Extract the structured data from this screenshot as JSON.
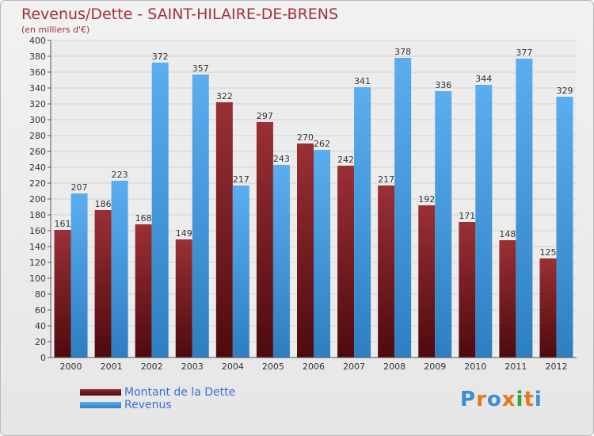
{
  "title": "Revenus/Dette - SAINT-HILAIRE-DE-BRENS",
  "subtitle": "(en milliers d'€)",
  "logo": {
    "text": "Proxiti",
    "letters": [
      {
        "ch": "P",
        "color": "#3a8fd8"
      },
      {
        "ch": "r",
        "color": "#e07a1f"
      },
      {
        "ch": "o",
        "color": "#3a8fd8"
      },
      {
        "ch": "x",
        "color": "#e07a1f"
      },
      {
        "ch": "i",
        "color": "#3aa33a"
      },
      {
        "ch": "t",
        "color": "#e07a1f"
      },
      {
        "ch": "i",
        "color": "#3a8fd8"
      }
    ]
  },
  "legend": [
    {
      "label": "Montant de la Dette",
      "color": "#7a1f24"
    },
    {
      "label": "Revenus",
      "color": "#4ba3e3"
    }
  ],
  "chart_data": {
    "type": "bar",
    "categories": [
      "2000",
      "2001",
      "2002",
      "2003",
      "2004",
      "2005",
      "2006",
      "2007",
      "2008",
      "2009",
      "2010",
      "2011",
      "2012"
    ],
    "series": [
      {
        "name": "Montant de la Dette",
        "values": [
          161,
          186,
          168,
          149,
          322,
          297,
          270,
          242,
          217,
          192,
          171,
          148,
          125
        ],
        "color": "#7a1f24"
      },
      {
        "name": "Revenus",
        "values": [
          207,
          223,
          372,
          357,
          217,
          243,
          262,
          341,
          378,
          336,
          344,
          377,
          329
        ],
        "color": "#4ba3e3"
      }
    ],
    "ylim": [
      0,
      400
    ],
    "yticks": [
      0,
      20,
      40,
      60,
      80,
      100,
      120,
      140,
      160,
      180,
      200,
      220,
      240,
      260,
      280,
      300,
      320,
      340,
      360,
      380,
      400
    ],
    "grid": true
  }
}
